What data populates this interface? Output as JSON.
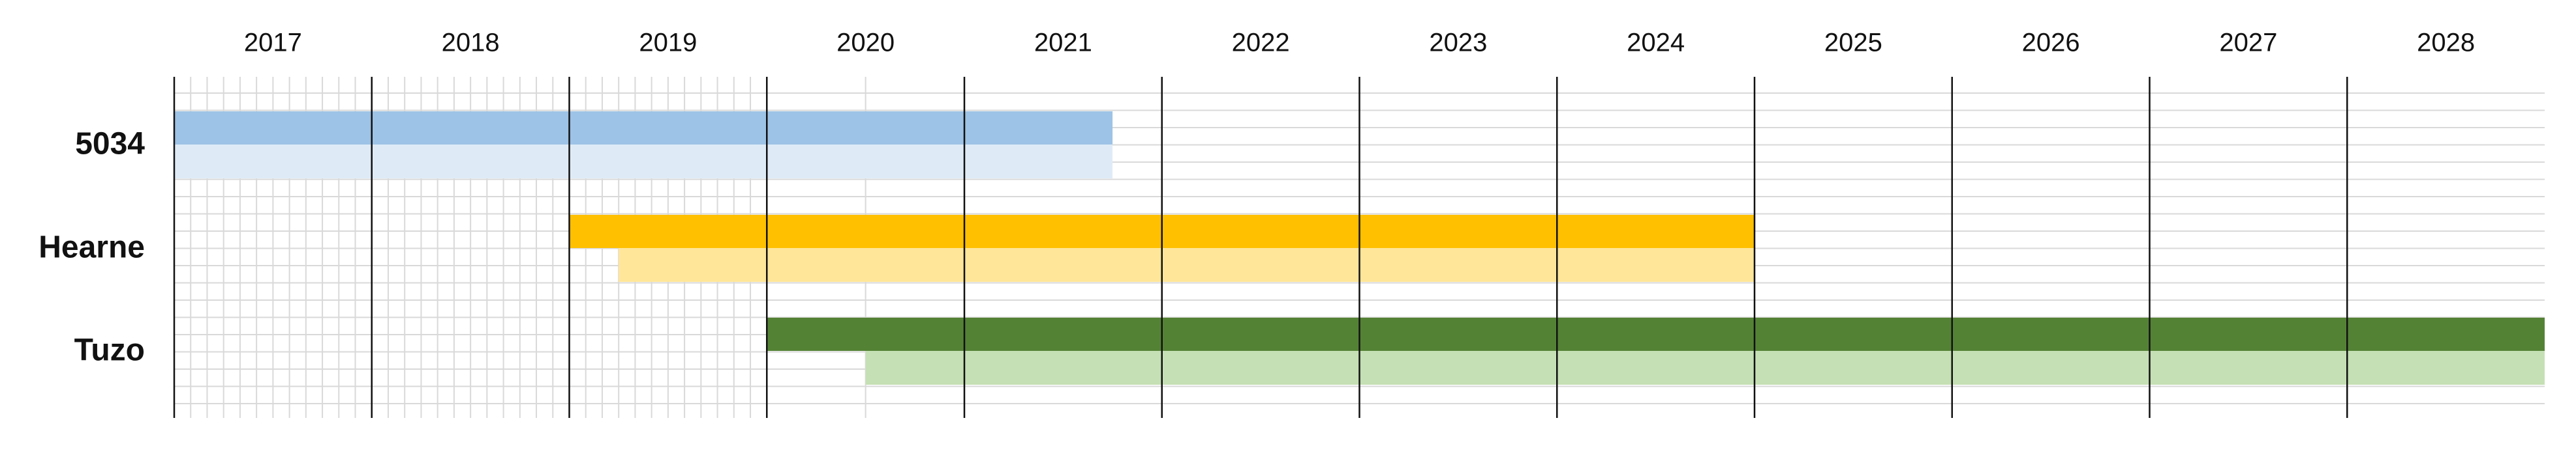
{
  "chart_data": {
    "type": "gantt",
    "xlim": [
      2017,
      2029
    ],
    "xticks": [
      {
        "value": 2017,
        "label": "2017"
      },
      {
        "value": 2018,
        "label": "2018"
      },
      {
        "value": 2019,
        "label": "2019"
      },
      {
        "value": 2020,
        "label": "2020"
      },
      {
        "value": 2021,
        "label": "2021"
      },
      {
        "value": 2022,
        "label": "2022"
      },
      {
        "value": 2023,
        "label": "2023"
      },
      {
        "value": 2024,
        "label": "2024"
      },
      {
        "value": 2025,
        "label": "2025"
      },
      {
        "value": 2026,
        "label": "2026"
      },
      {
        "value": 2027,
        "label": "2027"
      },
      {
        "value": 2028,
        "label": "2028"
      }
    ],
    "rows": [
      {
        "name": "5034",
        "bars": [
          {
            "start": 2017,
            "end": 2021.75,
            "color": "#9dc3e6"
          },
          {
            "start": 2017,
            "end": 2021.75,
            "color": "#deebf7"
          }
        ]
      },
      {
        "name": "Hearne",
        "bars": [
          {
            "start": 2019,
            "end": 2025,
            "color": "#ffc000"
          },
          {
            "start": 2019.25,
            "end": 2025,
            "color": "#ffe699"
          }
        ]
      },
      {
        "name": "Tuzo",
        "bars": [
          {
            "start": 2020,
            "end": 2029,
            "color": "#548235"
          },
          {
            "start": 2020.5,
            "end": 2029,
            "color": "#c5e0b4"
          }
        ]
      }
    ]
  }
}
